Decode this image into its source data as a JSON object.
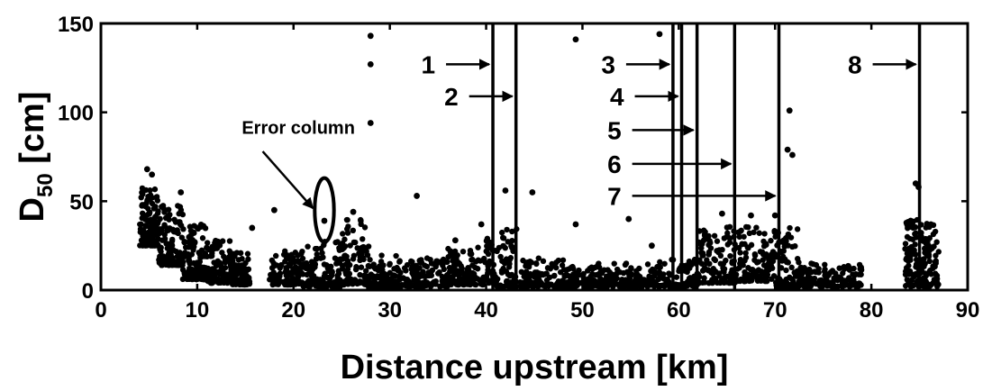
{
  "chart_data": {
    "type": "scatter",
    "title": "",
    "xlabel": "Distance upstream [km]",
    "ylabel": {
      "main": "D",
      "sub": "50",
      "unit": " [cm]"
    },
    "xlim": [
      0,
      90
    ],
    "ylim": [
      0,
      150
    ],
    "xticks": [
      "0",
      "10",
      "20",
      "30",
      "40",
      "50",
      "60",
      "70",
      "80",
      "90"
    ],
    "yticks": [
      "0",
      "50",
      "100",
      "150"
    ],
    "grid": false,
    "legend": "none",
    "point_color": "#000000",
    "outliers": [
      [
        28.0,
        143
      ],
      [
        28.0,
        127
      ],
      [
        28.0,
        94
      ],
      [
        49.3,
        141
      ],
      [
        58.0,
        144
      ],
      [
        71.5,
        101
      ],
      [
        42.0,
        56
      ],
      [
        44.8,
        55
      ],
      [
        32.8,
        53
      ],
      [
        49.3,
        37
      ],
      [
        54.8,
        40
      ],
      [
        18.0,
        45
      ],
      [
        71.3,
        79
      ],
      [
        71.8,
        76
      ],
      [
        5.3,
        65
      ],
      [
        4.8,
        68
      ],
      [
        23.2,
        39
      ],
      [
        26.2,
        44
      ],
      [
        84.6,
        60
      ],
      [
        84.9,
        58
      ],
      [
        70.0,
        42
      ],
      [
        64.5,
        43
      ],
      [
        67.5,
        42
      ],
      [
        8.3,
        55
      ],
      [
        57.2,
        25
      ],
      [
        39.5,
        37
      ],
      [
        36.8,
        28
      ],
      [
        15.7,
        35
      ]
    ],
    "clusters": [
      {
        "x": [
          4.0,
          6.0
        ],
        "y": [
          25,
          58
        ],
        "n": 130
      },
      {
        "x": [
          6.0,
          8.5
        ],
        "y": [
          14,
          48
        ],
        "n": 130
      },
      {
        "x": [
          8.5,
          11.0
        ],
        "y": [
          6,
          38
        ],
        "n": 130
      },
      {
        "x": [
          11.0,
          13.5
        ],
        "y": [
          4,
          28
        ],
        "n": 110
      },
      {
        "x": [
          13.5,
          15.5
        ],
        "y": [
          3,
          22
        ],
        "n": 80
      },
      {
        "x": [
          17.5,
          21.0
        ],
        "y": [
          3,
          22
        ],
        "n": 110
      },
      {
        "x": [
          21.0,
          25.0
        ],
        "y": [
          2,
          28
        ],
        "n": 130
      },
      {
        "x": [
          25.0,
          27.8
        ],
        "y": [
          3,
          40
        ],
        "n": 100
      },
      {
        "x": [
          27.8,
          31.0
        ],
        "y": [
          1,
          20
        ],
        "n": 100
      },
      {
        "x": [
          31.0,
          36.0
        ],
        "y": [
          2,
          18
        ],
        "n": 130
      },
      {
        "x": [
          36.0,
          40.0
        ],
        "y": [
          3,
          24
        ],
        "n": 110
      },
      {
        "x": [
          40.0,
          41.0
        ],
        "y": [
          4,
          30
        ],
        "n": 35
      },
      {
        "x": [
          41.0,
          43.2
        ],
        "y": [
          2,
          35
        ],
        "n": 60
      },
      {
        "x": [
          43.5,
          48.0
        ],
        "y": [
          2,
          18
        ],
        "n": 110
      },
      {
        "x": [
          48.0,
          53.0
        ],
        "y": [
          2,
          15
        ],
        "n": 120
      },
      {
        "x": [
          53.0,
          58.0
        ],
        "y": [
          2,
          15
        ],
        "n": 120
      },
      {
        "x": [
          58.0,
          62.0
        ],
        "y": [
          2,
          18
        ],
        "n": 90
      },
      {
        "x": [
          62.0,
          66.0
        ],
        "y": [
          4,
          36
        ],
        "n": 120
      },
      {
        "x": [
          66.0,
          70.0
        ],
        "y": [
          5,
          36
        ],
        "n": 120
      },
      {
        "x": [
          70.0,
          72.5
        ],
        "y": [
          1,
          35
        ],
        "n": 80
      },
      {
        "x": [
          72.5,
          79.0
        ],
        "y": [
          2,
          15
        ],
        "n": 140
      },
      {
        "x": [
          83.5,
          85.0
        ],
        "y": [
          2,
          42
        ],
        "n": 80
      },
      {
        "x": [
          85.0,
          87.0
        ],
        "y": [
          2,
          38
        ],
        "n": 80
      }
    ],
    "vertical_lines": [
      40.7,
      43.1,
      59.4,
      60.3,
      61.9,
      65.8,
      70.4,
      85.0
    ],
    "annotations": [
      {
        "label": "1",
        "x": 40.7,
        "y": 127,
        "row": 0
      },
      {
        "label": "2",
        "x": 43.1,
        "y": 109,
        "row": 1
      },
      {
        "label": "3",
        "x": 59.4,
        "y": 127,
        "row": 0
      },
      {
        "label": "4",
        "x": 60.3,
        "y": 109,
        "row": 1
      },
      {
        "label": "5",
        "x": 61.9,
        "y": 90,
        "row": 2
      },
      {
        "label": "6",
        "x": 65.8,
        "y": 71,
        "row": 3
      },
      {
        "label": "7",
        "x": 70.4,
        "y": 53,
        "row": 4
      },
      {
        "label": "8",
        "x": 85.0,
        "y": 127,
        "row": 0
      }
    ],
    "error_column": {
      "label": "Error column",
      "x": 23.2,
      "y_center": 45,
      "y_half": 18,
      "x_half": 1.0
    }
  }
}
